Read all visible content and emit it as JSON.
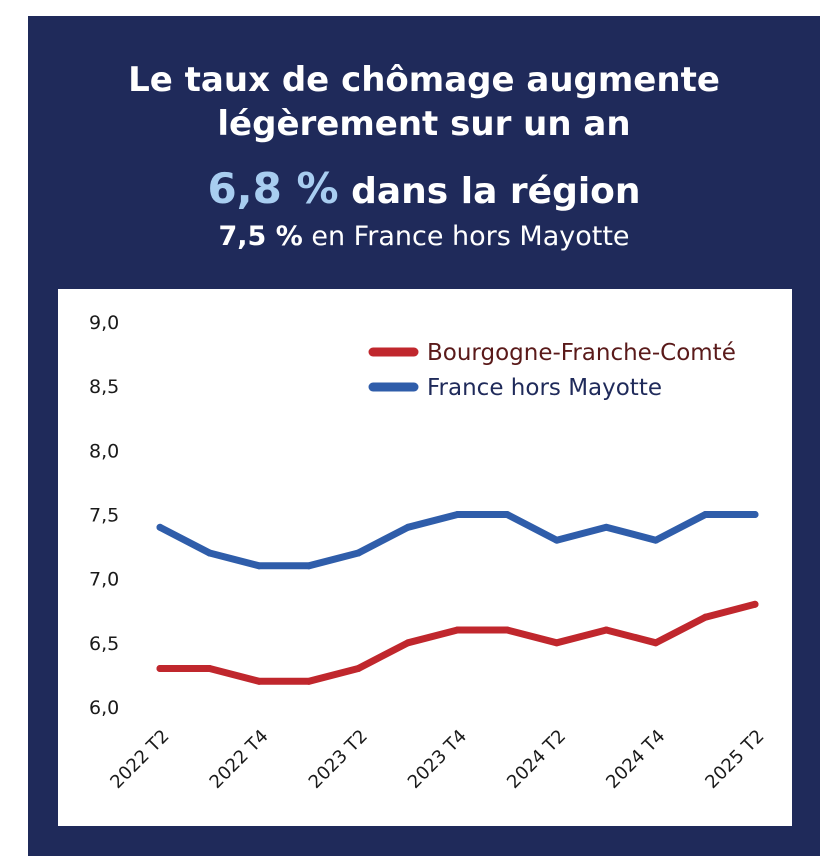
{
  "header": {
    "title_line1": "Le taux de chômage augmente",
    "title_line2": "légèrement sur un an",
    "headline_value": "6,8 %",
    "headline_text": " dans la région",
    "subline_value": "7,5 %",
    "subline_text": " en France hors Mayotte"
  },
  "colors": {
    "background": "#1f2a5a",
    "highlight": "#a8cdf0",
    "region_series": "#c0272d",
    "france_series": "#2f5daa",
    "region_legend_text": "#5a1a1a",
    "france_legend_text": "#1f2a5a"
  },
  "chart_data": {
    "type": "line",
    "title": "",
    "xlabel": "",
    "ylabel": "",
    "ylim": [
      6.0,
      9.0
    ],
    "yticks": [
      "9,0",
      "8,5",
      "8,0",
      "7,5",
      "7,0",
      "6,5",
      "6,0"
    ],
    "ytick_values": [
      9.0,
      8.5,
      8.0,
      7.5,
      7.0,
      6.5,
      6.0
    ],
    "x": [
      "2022 T2",
      "2022 T3",
      "2022 T4",
      "2023 T1",
      "2023 T2",
      "2023 T3",
      "2023 T4",
      "2024 T1",
      "2024 T2",
      "2024 T3",
      "2024 T4",
      "2025 T1",
      "2025 T2"
    ],
    "xtick_labels": [
      "2022 T2",
      "2022 T4",
      "2023 T2",
      "2023 T4",
      "2024 T2",
      "2024 T4",
      "2025 T2"
    ],
    "xtick_indices": [
      0,
      2,
      4,
      6,
      8,
      10,
      12
    ],
    "grid": false,
    "legend_position": "top-right",
    "series": [
      {
        "name": "Bourgogne-Franche-Comté",
        "color": "#c0272d",
        "values": [
          6.3,
          6.3,
          6.2,
          6.2,
          6.3,
          6.5,
          6.6,
          6.6,
          6.5,
          6.6,
          6.5,
          6.7,
          6.8
        ]
      },
      {
        "name": "France hors Mayotte",
        "color": "#2f5daa",
        "values": [
          7.4,
          7.2,
          7.1,
          7.1,
          7.2,
          7.4,
          7.5,
          7.5,
          7.3,
          7.4,
          7.3,
          7.5,
          7.5
        ]
      }
    ]
  }
}
